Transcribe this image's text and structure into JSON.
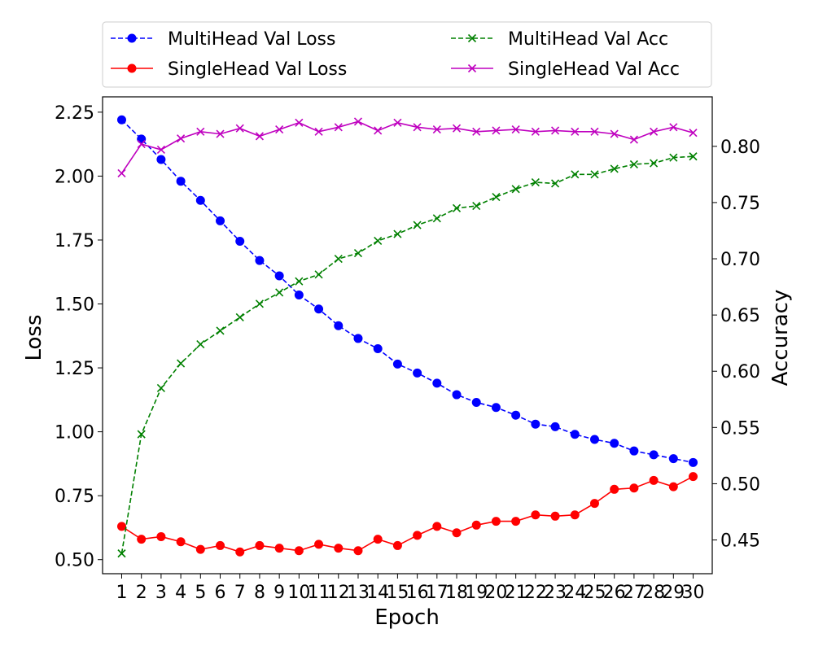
{
  "chart_data": {
    "type": "line",
    "title": "",
    "xlabel": "Epoch",
    "ylabel": "Loss",
    "y2label": "Accuracy",
    "x": [
      1,
      2,
      3,
      4,
      5,
      6,
      7,
      8,
      9,
      10,
      11,
      12,
      13,
      14,
      15,
      16,
      17,
      18,
      19,
      20,
      21,
      22,
      23,
      24,
      25,
      26,
      27,
      28,
      29,
      30
    ],
    "xticks": [
      "1",
      "2",
      "3",
      "4",
      "5",
      "6",
      "7",
      "8",
      "9",
      "10",
      "11",
      "12",
      "13",
      "14",
      "15",
      "16",
      "17",
      "18",
      "19",
      "20",
      "21",
      "22",
      "23",
      "24",
      "25",
      "26",
      "27",
      "28",
      "29",
      "30"
    ],
    "xlim": [
      0.03,
      30.97
    ],
    "ylim": [
      0.445,
      2.31
    ],
    "y2lim": [
      0.42,
      0.844
    ],
    "yticks": [
      "0.50",
      "0.75",
      "1.00",
      "1.25",
      "1.50",
      "1.75",
      "2.00",
      "2.25"
    ],
    "y2ticks": [
      "0.45",
      "0.50",
      "0.55",
      "0.60",
      "0.65",
      "0.70",
      "0.75",
      "0.80"
    ],
    "grid": false,
    "legend_position": "top, above plot, two columns",
    "series": [
      {
        "name": "MultiHead Val Loss",
        "axis": "left",
        "color": "#0000ff",
        "linestyle": "dashed",
        "marker": "circle",
        "values": [
          2.22,
          2.145,
          2.065,
          1.98,
          1.905,
          1.825,
          1.745,
          1.67,
          1.61,
          1.535,
          1.48,
          1.415,
          1.365,
          1.325,
          1.265,
          1.23,
          1.19,
          1.145,
          1.115,
          1.095,
          1.065,
          1.03,
          1.02,
          0.99,
          0.97,
          0.955,
          0.925,
          0.91,
          0.895,
          0.88
        ]
      },
      {
        "name": "SingleHead Val Loss",
        "axis": "left",
        "color": "#ff0000",
        "linestyle": "solid",
        "marker": "circle",
        "values": [
          0.63,
          0.58,
          0.59,
          0.57,
          0.54,
          0.555,
          0.53,
          0.555,
          0.545,
          0.535,
          0.56,
          0.545,
          0.535,
          0.58,
          0.555,
          0.595,
          0.63,
          0.605,
          0.635,
          0.65,
          0.65,
          0.675,
          0.67,
          0.675,
          0.72,
          0.775,
          0.78,
          0.81,
          0.785,
          0.825
        ]
      },
      {
        "name": "MultiHead Val Acc",
        "axis": "right",
        "color": "#008000",
        "linestyle": "dashed",
        "marker": "x",
        "values": [
          0.438,
          0.544,
          0.585,
          0.607,
          0.624,
          0.636,
          0.648,
          0.66,
          0.67,
          0.68,
          0.686,
          0.7,
          0.705,
          0.716,
          0.722,
          0.73,
          0.736,
          0.745,
          0.747,
          0.755,
          0.762,
          0.768,
          0.767,
          0.775,
          0.775,
          0.78,
          0.784,
          0.785,
          0.79,
          0.791
        ]
      },
      {
        "name": "SingleHead Val Acc",
        "axis": "right",
        "color": "#bf00bf",
        "linestyle": "solid",
        "marker": "x",
        "values": [
          0.776,
          0.802,
          0.797,
          0.807,
          0.813,
          0.811,
          0.816,
          0.809,
          0.815,
          0.821,
          0.813,
          0.817,
          0.822,
          0.814,
          0.821,
          0.817,
          0.815,
          0.816,
          0.813,
          0.814,
          0.815,
          0.813,
          0.814,
          0.813,
          0.813,
          0.811,
          0.806,
          0.813,
          0.817,
          0.812
        ]
      }
    ]
  }
}
